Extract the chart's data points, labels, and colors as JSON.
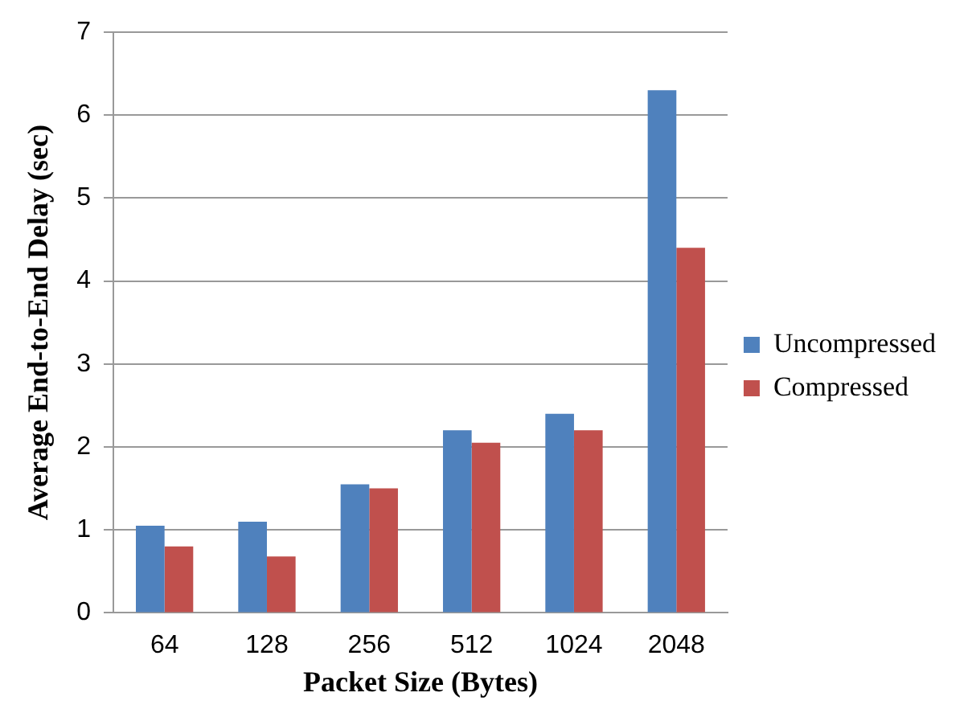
{
  "chart_data": {
    "type": "bar",
    "xlabel": "Packet Size (Bytes)",
    "ylabel": "Average End-to-End Delay (sec)",
    "categories": [
      "64",
      "128",
      "256",
      "512",
      "1024",
      "2048"
    ],
    "series": [
      {
        "name": "Uncompressed",
        "color": "#4f81bd",
        "values": [
          1.05,
          1.1,
          1.55,
          2.2,
          2.4,
          6.3
        ]
      },
      {
        "name": "Compressed",
        "color": "#c0504d",
        "values": [
          0.8,
          0.68,
          1.5,
          2.05,
          2.2,
          4.4
        ]
      }
    ],
    "ylim": [
      0,
      7
    ],
    "yticks": [
      0,
      1,
      2,
      3,
      4,
      5,
      6,
      7
    ],
    "grid": "y",
    "legend": "right"
  }
}
